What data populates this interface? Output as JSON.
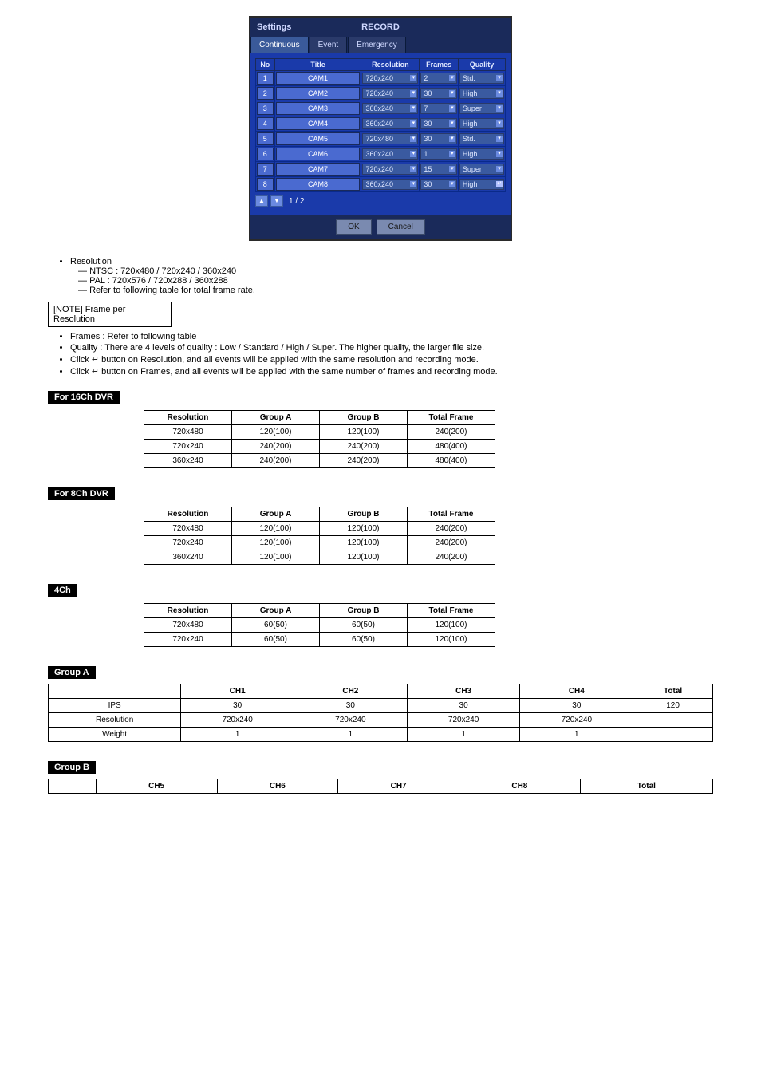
{
  "screenshot": {
    "settings_label": "Settings",
    "record_label": "RECORD",
    "tabs": [
      "Continuous",
      "Event",
      "Emergency"
    ],
    "columns": [
      "No",
      "Title",
      "Resolution",
      "Frames",
      "Quality"
    ],
    "rows": [
      {
        "no": "1",
        "title": "CAM1",
        "res": "720x240",
        "frames": "2",
        "quality": "Std."
      },
      {
        "no": "2",
        "title": "CAM2",
        "res": "720x240",
        "frames": "30",
        "quality": "High"
      },
      {
        "no": "3",
        "title": "CAM3",
        "res": "360x240",
        "frames": "7",
        "quality": "Super"
      },
      {
        "no": "4",
        "title": "CAM4",
        "res": "360x240",
        "frames": "30",
        "quality": "High"
      },
      {
        "no": "5",
        "title": "CAM5",
        "res": "720x480",
        "frames": "30",
        "quality": "Std."
      },
      {
        "no": "6",
        "title": "CAM6",
        "res": "360x240",
        "frames": "1",
        "quality": "High"
      },
      {
        "no": "7",
        "title": "CAM7",
        "res": "720x240",
        "frames": "15",
        "quality": "Super"
      },
      {
        "no": "8",
        "title": "CAM8",
        "res": "360x240",
        "frames": "30",
        "quality": "High"
      }
    ],
    "pager_text": "1 / 2",
    "ok_label": "OK",
    "cancel_label": "Cancel"
  },
  "bullets": {
    "resolution_label": "Resolution",
    "res_items": [
      "NTSC : 720x480 / 720x240 / 360x240",
      "PAL : 720x576 / 720x288 / 360x288",
      "Refer to following table for total frame rate."
    ],
    "frames_label": "Frames : Refer to following table",
    "quality_label": "Quality : There are 4 levels of quality : Low / Standard / High / Super. The higher quality, the larger file size.",
    "enter1": "Click ↵ button on Resolution, and all events will be applied with the same resolution and recording mode.",
    "enter2": "Click ↵ button on Frames, and all events will be applied with the same number of frames and recording mode."
  },
  "note_box": "[NOTE] Frame per Resolution",
  "tables": {
    "ch16_label": "For 16Ch DVR",
    "ch16_header": [
      "Resolution",
      "Group A",
      "Group B",
      "Total Frame"
    ],
    "ch16_rows": [
      [
        "720x480",
        "120(100)",
        "120(100)",
        "240(200)"
      ],
      [
        "720x240",
        "240(200)",
        "240(200)",
        "480(400)"
      ],
      [
        "360x240",
        "240(200)",
        "240(200)",
        "480(400)"
      ]
    ],
    "ch8_label": "For 8Ch DVR",
    "ch8_header": [
      "Resolution",
      "Group A",
      "Group B",
      "Total Frame"
    ],
    "ch8_rows": [
      [
        "720x480",
        "120(100)",
        "120(100)",
        "240(200)"
      ],
      [
        "720x240",
        "120(100)",
        "120(100)",
        "240(200)"
      ],
      [
        "360x240",
        "120(100)",
        "120(100)",
        "240(200)"
      ]
    ],
    "ch4_label": "4Ch",
    "ch4_header": [
      "Resolution",
      "Group A",
      "Group B",
      "Total Frame"
    ],
    "ch4_rows": [
      [
        "720x480",
        "60(50)",
        "60(50)",
        "120(100)"
      ],
      [
        "720x240",
        "60(50)",
        "60(50)",
        "120(100)"
      ]
    ],
    "groupA_label": "Group A",
    "groupA_header": [
      "",
      "CH1",
      "CH2",
      "CH3",
      "CH4",
      "Total"
    ],
    "groupA_rows": [
      [
        "IPS",
        "30",
        "30",
        "30",
        "30",
        "120"
      ],
      [
        "Resolution",
        "720x240",
        "720x240",
        "720x240",
        "720x240",
        ""
      ],
      [
        "Weight",
        "1",
        "1",
        "1",
        "1",
        ""
      ]
    ],
    "groupB_label": "Group B",
    "groupB_header": [
      "",
      "CH5",
      "CH6",
      "CH7",
      "CH8",
      "Total"
    ]
  }
}
